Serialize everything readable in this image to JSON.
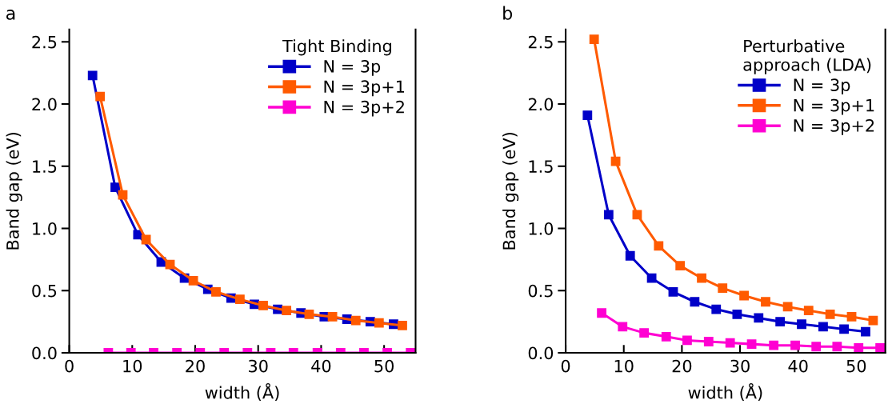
{
  "chart_data": [
    {
      "type": "line",
      "title": "a",
      "xlabel": "width (Å)",
      "ylabel": "Band gap (eV)",
      "legend_title": "Tight Binding",
      "legend": "top right",
      "marker": "square",
      "line_style": "solid",
      "grid": false,
      "xlim": [
        0,
        55
      ],
      "xticks": [
        0,
        10,
        20,
        30,
        40,
        50
      ],
      "ylim": [
        0,
        2.6
      ],
      "yticks": [
        {
          "value": 0,
          "label": "0.0"
        },
        0.5,
        {
          "value": 1,
          "label": "1.0"
        },
        1.5,
        {
          "value": 2,
          "label": "2.0"
        },
        2.5
      ],
      "series": [
        {
          "name": "N = 3p",
          "color": "#0000c8",
          "x": [
            3.7,
            7.3,
            10.9,
            14.6,
            18.3,
            22.0,
            25.7,
            29.4,
            33.1,
            36.8,
            40.5,
            44.1,
            47.8,
            51.5
          ],
          "values": [
            2.23,
            1.33,
            0.95,
            0.73,
            0.6,
            0.51,
            0.44,
            0.39,
            0.35,
            0.32,
            0.29,
            0.27,
            0.25,
            0.23
          ]
        },
        {
          "name": "N = 3p+1",
          "color": "#ff5a00",
          "x": [
            4.9,
            8.5,
            12.2,
            16.0,
            19.7,
            23.3,
            27.1,
            30.8,
            34.5,
            38.1,
            41.8,
            45.5,
            49.2,
            52.9
          ],
          "values": [
            2.06,
            1.27,
            0.91,
            0.71,
            0.58,
            0.49,
            0.43,
            0.38,
            0.34,
            0.31,
            0.29,
            0.26,
            0.24,
            0.22
          ]
        },
        {
          "name": "N = 3p+2",
          "color": "#ff00d2",
          "x": [
            6.2,
            9.8,
            13.4,
            17.1,
            20.8,
            24.6,
            28.3,
            32.0,
            35.6,
            39.4,
            43.1,
            46.8,
            50.5,
            54.2
          ],
          "values": [
            0,
            0,
            0,
            0,
            0,
            0,
            0,
            0,
            0,
            0,
            0,
            0,
            0,
            0
          ]
        }
      ]
    },
    {
      "type": "line",
      "title": "b",
      "xlabel": "width (Å)",
      "ylabel": "Band gap (eV)",
      "legend_title": "Perturbative\napproach (LDA)",
      "legend": "top right",
      "marker": "square",
      "line_style": "solid",
      "grid": false,
      "xlim": [
        0,
        55
      ],
      "xticks": [
        0,
        10,
        20,
        30,
        40,
        50
      ],
      "ylim": [
        0,
        2.6
      ],
      "yticks": [
        {
          "value": 0,
          "label": "0.0"
        },
        0.5,
        {
          "value": 1,
          "label": "1.0"
        },
        1.5,
        {
          "value": 2,
          "label": "2.0"
        },
        2.5
      ],
      "series": [
        {
          "name": "N = 3p",
          "color": "#0000c8",
          "x": [
            3.75,
            7.4,
            11.1,
            14.8,
            18.5,
            22.2,
            25.9,
            29.5,
            33.2,
            36.9,
            40.6,
            44.3,
            47.9,
            51.6
          ],
          "values": [
            1.91,
            1.11,
            0.78,
            0.6,
            0.49,
            0.41,
            0.35,
            0.31,
            0.28,
            0.25,
            0.23,
            0.21,
            0.19,
            0.17
          ]
        },
        {
          "name": "N = 3p+1",
          "color": "#ff5a00",
          "x": [
            4.9,
            8.6,
            12.3,
            16.0,
            19.7,
            23.4,
            27.0,
            30.7,
            34.4,
            38.2,
            41.8,
            45.5,
            49.2,
            52.9
          ],
          "values": [
            2.52,
            1.54,
            1.11,
            0.86,
            0.7,
            0.6,
            0.52,
            0.46,
            0.41,
            0.37,
            0.34,
            0.31,
            0.29,
            0.26
          ]
        },
        {
          "name": "N = 3p+2",
          "color": "#ff00d2",
          "x": [
            6.2,
            9.8,
            13.5,
            17.3,
            20.9,
            24.6,
            28.3,
            32.0,
            35.8,
            39.5,
            43.1,
            46.7,
            50.4,
            54.1
          ],
          "values": [
            0.32,
            0.21,
            0.16,
            0.13,
            0.1,
            0.09,
            0.08,
            0.07,
            0.06,
            0.06,
            0.05,
            0.05,
            0.04,
            0.04
          ]
        }
      ]
    }
  ]
}
